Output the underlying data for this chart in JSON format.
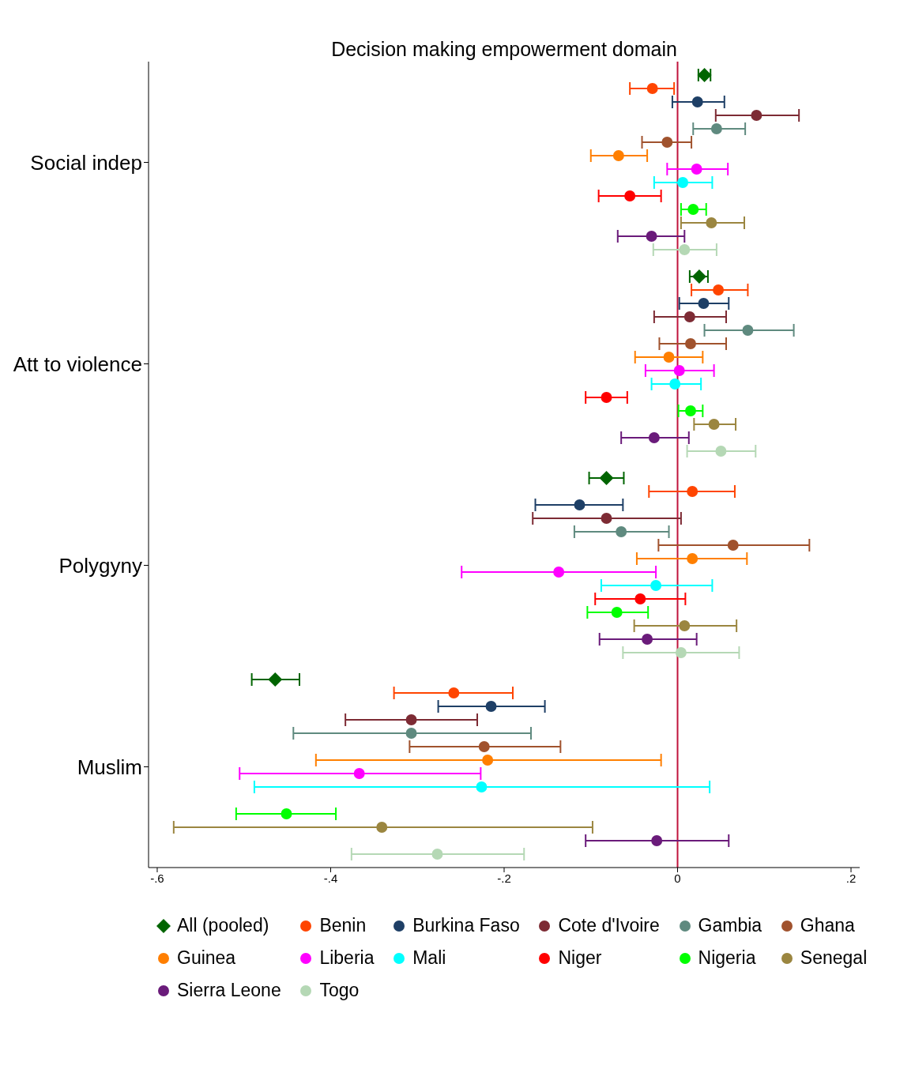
{
  "chart_data": {
    "type": "scatter",
    "orientation": "horizontal",
    "title": "Decision making empowerment domain",
    "categories": [
      "Social indep",
      "Att to violence",
      "Polygyny",
      "Muslim"
    ],
    "xlim": [
      -0.61,
      0.21
    ],
    "xticks": [
      {
        "value": -0.6,
        "label": "-.6"
      },
      {
        "value": -0.4,
        "label": "-.4"
      },
      {
        "value": -0.2,
        "label": "-.2"
      },
      {
        "value": 0,
        "label": "0"
      },
      {
        "value": 0.2,
        "label": ".2"
      }
    ],
    "grid": false,
    "legend": "bottom",
    "ref_lines": [
      {
        "axis": "x",
        "value": 0,
        "color": "#c0143c"
      }
    ],
    "series": [
      {
        "name": "All (pooled)",
        "color": "#006400",
        "marker": "diamond",
        "values": [
          0.031,
          0.025,
          -0.082,
          -0.464
        ],
        "errors": [
          [
            0.024,
            0.038
          ],
          [
            0.014,
            0.035
          ],
          [
            -0.102,
            -0.062
          ],
          [
            -0.491,
            -0.436
          ]
        ]
      },
      {
        "name": "Benin",
        "color": "#ff4500",
        "marker": "circle",
        "values": [
          -0.029,
          0.047,
          0.017,
          -0.258
        ],
        "errors": [
          [
            -0.055,
            -0.004
          ],
          [
            0.016,
            0.081
          ],
          [
            -0.033,
            0.066
          ],
          [
            -0.327,
            -0.19
          ]
        ]
      },
      {
        "name": "Burkina Faso",
        "color": "#1e3f66",
        "marker": "circle",
        "values": [
          0.023,
          0.03,
          -0.113,
          -0.215
        ],
        "errors": [
          [
            -0.006,
            0.054
          ],
          [
            0.002,
            0.059
          ],
          [
            -0.164,
            -0.063
          ],
          [
            -0.276,
            -0.153
          ]
        ]
      },
      {
        "name": "Cote d'Ivoire",
        "color": "#7d2b34",
        "marker": "circle",
        "values": [
          0.091,
          0.014,
          -0.082,
          -0.307
        ],
        "errors": [
          [
            0.044,
            0.14
          ],
          [
            -0.027,
            0.056
          ],
          [
            -0.167,
            0.004
          ],
          [
            -0.383,
            -0.231
          ]
        ]
      },
      {
        "name": "Gambia",
        "color": "#5f8a7f",
        "marker": "circle",
        "values": [
          0.045,
          0.081,
          -0.065,
          -0.307
        ],
        "errors": [
          [
            0.018,
            0.078
          ],
          [
            0.031,
            0.134
          ],
          [
            -0.119,
            -0.01
          ],
          [
            -0.443,
            -0.169
          ]
        ]
      },
      {
        "name": "Ghana",
        "color": "#a0522d",
        "marker": "circle",
        "values": [
          -0.012,
          0.015,
          0.064,
          -0.223
        ],
        "errors": [
          [
            -0.041,
            0.016
          ],
          [
            -0.021,
            0.056
          ],
          [
            -0.022,
            0.152
          ],
          [
            -0.309,
            -0.135
          ]
        ]
      },
      {
        "name": "Guinea",
        "color": "#ff7f00",
        "marker": "circle",
        "values": [
          -0.068,
          -0.01,
          0.017,
          -0.219
        ],
        "errors": [
          [
            -0.1,
            -0.035
          ],
          [
            -0.049,
            0.029
          ],
          [
            -0.047,
            0.08
          ],
          [
            -0.417,
            -0.019
          ]
        ]
      },
      {
        "name": "Liberia",
        "color": "#ff00ff",
        "marker": "circle",
        "values": [
          0.022,
          0.002,
          -0.137,
          -0.367
        ],
        "errors": [
          [
            -0.012,
            0.058
          ],
          [
            -0.037,
            0.042
          ],
          [
            -0.249,
            -0.025
          ],
          [
            -0.505,
            -0.227
          ]
        ]
      },
      {
        "name": "Mali",
        "color": "#00ffff",
        "marker": "circle",
        "values": [
          0.006,
          -0.003,
          -0.025,
          -0.226
        ],
        "errors": [
          [
            -0.027,
            0.04
          ],
          [
            -0.03,
            0.027
          ],
          [
            -0.088,
            0.04
          ],
          [
            -0.488,
            0.037
          ]
        ]
      },
      {
        "name": "Niger",
        "color": "#ff0000",
        "marker": "circle",
        "values": [
          -0.055,
          -0.082,
          -0.043,
          null
        ],
        "errors": [
          [
            -0.091,
            -0.019
          ],
          [
            -0.106,
            -0.058
          ],
          [
            -0.095,
            0.009
          ],
          null
        ]
      },
      {
        "name": "Nigeria",
        "color": "#00ff00",
        "marker": "circle",
        "values": [
          0.018,
          0.015,
          -0.07,
          -0.451
        ],
        "errors": [
          [
            0.004,
            0.033
          ],
          [
            0.001,
            0.029
          ],
          [
            -0.104,
            -0.034
          ],
          [
            -0.509,
            -0.394
          ]
        ]
      },
      {
        "name": "Senegal",
        "color": "#9b8640",
        "marker": "circle",
        "values": [
          0.039,
          0.042,
          0.008,
          -0.341
        ],
        "errors": [
          [
            0.004,
            0.077
          ],
          [
            0.019,
            0.067
          ],
          [
            -0.05,
            0.068
          ],
          [
            -0.581,
            -0.098
          ]
        ]
      },
      {
        "name": "Sierra Leone",
        "color": "#6a1b7a",
        "marker": "circle",
        "values": [
          -0.03,
          -0.027,
          -0.035,
          -0.024
        ],
        "errors": [
          [
            -0.069,
            0.008
          ],
          [
            -0.065,
            0.013
          ],
          [
            -0.09,
            0.022
          ],
          [
            -0.106,
            0.059
          ]
        ]
      },
      {
        "name": "Togo",
        "color": "#b5d8b5",
        "marker": "circle",
        "values": [
          0.008,
          0.05,
          0.004,
          -0.277
        ],
        "errors": [
          [
            -0.028,
            0.045
          ],
          [
            0.011,
            0.09
          ],
          [
            -0.063,
            0.071
          ],
          [
            -0.376,
            -0.177
          ]
        ]
      }
    ]
  }
}
